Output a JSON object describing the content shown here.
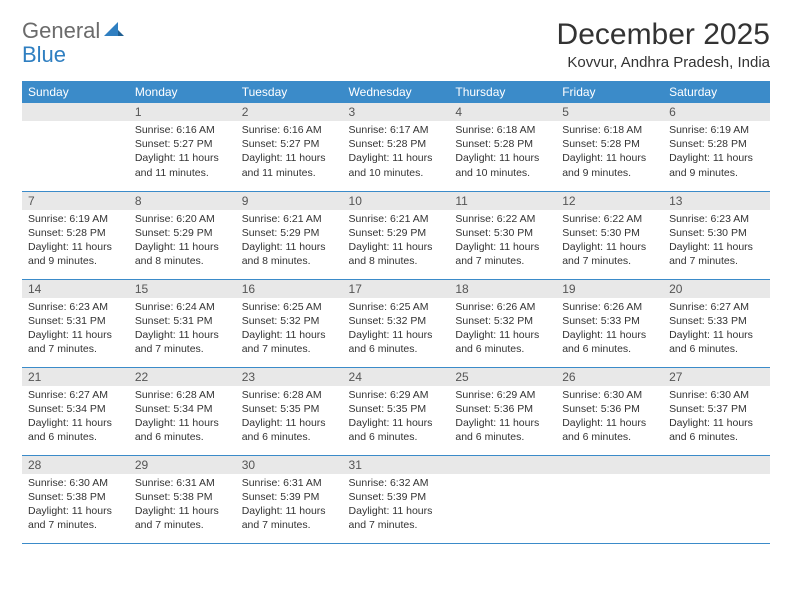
{
  "brand": {
    "part1": "General",
    "part2": "Blue"
  },
  "title": "December 2025",
  "location": "Kovvur, Andhra Pradesh, India",
  "colors": {
    "header_bg": "#3b8bc9",
    "header_text": "#ffffff",
    "daynum_bg": "#e8e8e8",
    "row_border": "#3b8bc9",
    "logo_general": "#6b6b6b",
    "logo_blue": "#2f7fc1",
    "body_text": "#333333"
  },
  "day_headers": [
    "Sunday",
    "Monday",
    "Tuesday",
    "Wednesday",
    "Thursday",
    "Friday",
    "Saturday"
  ],
  "weeks": [
    [
      {
        "day": "",
        "lines": []
      },
      {
        "day": "1",
        "lines": [
          "Sunrise: 6:16 AM",
          "Sunset: 5:27 PM",
          "Daylight: 11 hours and 11 minutes."
        ]
      },
      {
        "day": "2",
        "lines": [
          "Sunrise: 6:16 AM",
          "Sunset: 5:27 PM",
          "Daylight: 11 hours and 11 minutes."
        ]
      },
      {
        "day": "3",
        "lines": [
          "Sunrise: 6:17 AM",
          "Sunset: 5:28 PM",
          "Daylight: 11 hours and 10 minutes."
        ]
      },
      {
        "day": "4",
        "lines": [
          "Sunrise: 6:18 AM",
          "Sunset: 5:28 PM",
          "Daylight: 11 hours and 10 minutes."
        ]
      },
      {
        "day": "5",
        "lines": [
          "Sunrise: 6:18 AM",
          "Sunset: 5:28 PM",
          "Daylight: 11 hours and 9 minutes."
        ]
      },
      {
        "day": "6",
        "lines": [
          "Sunrise: 6:19 AM",
          "Sunset: 5:28 PM",
          "Daylight: 11 hours and 9 minutes."
        ]
      }
    ],
    [
      {
        "day": "7",
        "lines": [
          "Sunrise: 6:19 AM",
          "Sunset: 5:28 PM",
          "Daylight: 11 hours and 9 minutes."
        ]
      },
      {
        "day": "8",
        "lines": [
          "Sunrise: 6:20 AM",
          "Sunset: 5:29 PM",
          "Daylight: 11 hours and 8 minutes."
        ]
      },
      {
        "day": "9",
        "lines": [
          "Sunrise: 6:21 AM",
          "Sunset: 5:29 PM",
          "Daylight: 11 hours and 8 minutes."
        ]
      },
      {
        "day": "10",
        "lines": [
          "Sunrise: 6:21 AM",
          "Sunset: 5:29 PM",
          "Daylight: 11 hours and 8 minutes."
        ]
      },
      {
        "day": "11",
        "lines": [
          "Sunrise: 6:22 AM",
          "Sunset: 5:30 PM",
          "Daylight: 11 hours and 7 minutes."
        ]
      },
      {
        "day": "12",
        "lines": [
          "Sunrise: 6:22 AM",
          "Sunset: 5:30 PM",
          "Daylight: 11 hours and 7 minutes."
        ]
      },
      {
        "day": "13",
        "lines": [
          "Sunrise: 6:23 AM",
          "Sunset: 5:30 PM",
          "Daylight: 11 hours and 7 minutes."
        ]
      }
    ],
    [
      {
        "day": "14",
        "lines": [
          "Sunrise: 6:23 AM",
          "Sunset: 5:31 PM",
          "Daylight: 11 hours and 7 minutes."
        ]
      },
      {
        "day": "15",
        "lines": [
          "Sunrise: 6:24 AM",
          "Sunset: 5:31 PM",
          "Daylight: 11 hours and 7 minutes."
        ]
      },
      {
        "day": "16",
        "lines": [
          "Sunrise: 6:25 AM",
          "Sunset: 5:32 PM",
          "Daylight: 11 hours and 7 minutes."
        ]
      },
      {
        "day": "17",
        "lines": [
          "Sunrise: 6:25 AM",
          "Sunset: 5:32 PM",
          "Daylight: 11 hours and 6 minutes."
        ]
      },
      {
        "day": "18",
        "lines": [
          "Sunrise: 6:26 AM",
          "Sunset: 5:32 PM",
          "Daylight: 11 hours and 6 minutes."
        ]
      },
      {
        "day": "19",
        "lines": [
          "Sunrise: 6:26 AM",
          "Sunset: 5:33 PM",
          "Daylight: 11 hours and 6 minutes."
        ]
      },
      {
        "day": "20",
        "lines": [
          "Sunrise: 6:27 AM",
          "Sunset: 5:33 PM",
          "Daylight: 11 hours and 6 minutes."
        ]
      }
    ],
    [
      {
        "day": "21",
        "lines": [
          "Sunrise: 6:27 AM",
          "Sunset: 5:34 PM",
          "Daylight: 11 hours and 6 minutes."
        ]
      },
      {
        "day": "22",
        "lines": [
          "Sunrise: 6:28 AM",
          "Sunset: 5:34 PM",
          "Daylight: 11 hours and 6 minutes."
        ]
      },
      {
        "day": "23",
        "lines": [
          "Sunrise: 6:28 AM",
          "Sunset: 5:35 PM",
          "Daylight: 11 hours and 6 minutes."
        ]
      },
      {
        "day": "24",
        "lines": [
          "Sunrise: 6:29 AM",
          "Sunset: 5:35 PM",
          "Daylight: 11 hours and 6 minutes."
        ]
      },
      {
        "day": "25",
        "lines": [
          "Sunrise: 6:29 AM",
          "Sunset: 5:36 PM",
          "Daylight: 11 hours and 6 minutes."
        ]
      },
      {
        "day": "26",
        "lines": [
          "Sunrise: 6:30 AM",
          "Sunset: 5:36 PM",
          "Daylight: 11 hours and 6 minutes."
        ]
      },
      {
        "day": "27",
        "lines": [
          "Sunrise: 6:30 AM",
          "Sunset: 5:37 PM",
          "Daylight: 11 hours and 6 minutes."
        ]
      }
    ],
    [
      {
        "day": "28",
        "lines": [
          "Sunrise: 6:30 AM",
          "Sunset: 5:38 PM",
          "Daylight: 11 hours and 7 minutes."
        ]
      },
      {
        "day": "29",
        "lines": [
          "Sunrise: 6:31 AM",
          "Sunset: 5:38 PM",
          "Daylight: 11 hours and 7 minutes."
        ]
      },
      {
        "day": "30",
        "lines": [
          "Sunrise: 6:31 AM",
          "Sunset: 5:39 PM",
          "Daylight: 11 hours and 7 minutes."
        ]
      },
      {
        "day": "31",
        "lines": [
          "Sunrise: 6:32 AM",
          "Sunset: 5:39 PM",
          "Daylight: 11 hours and 7 minutes."
        ]
      },
      {
        "day": "",
        "lines": []
      },
      {
        "day": "",
        "lines": []
      },
      {
        "day": "",
        "lines": []
      }
    ]
  ]
}
